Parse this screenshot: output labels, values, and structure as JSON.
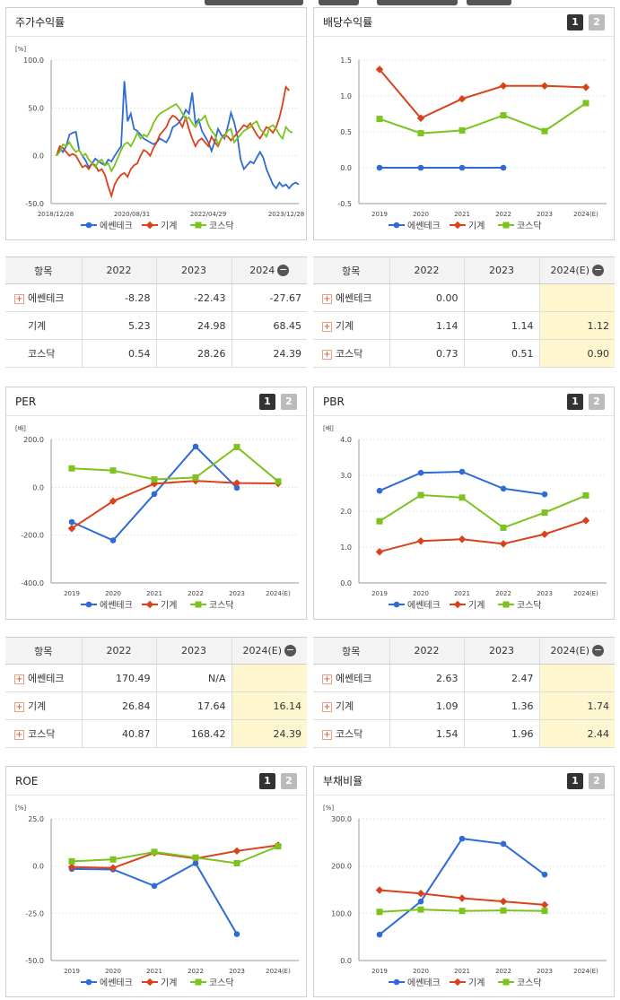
{
  "colors": {
    "company": "#2e6bd6",
    "industry": "#d9421a",
    "market": "#7cc31e",
    "highlight": "#fdf6cf"
  },
  "icons": {
    "expand": "plus-box-icon",
    "collapse": "minus-circle-icon"
  },
  "series_names": [
    "에쎈테크",
    "기계",
    "코스닥"
  ],
  "page_buttons": [
    "1",
    "2"
  ],
  "panels": {
    "stock_return": {
      "title": "주가수익률"
    },
    "dividend": {
      "title": "배당수익률"
    },
    "per": {
      "title": "PER"
    },
    "pbr": {
      "title": "PBR"
    },
    "roe": {
      "title": "ROE"
    },
    "debt": {
      "title": "부채비율"
    }
  },
  "tables": {
    "stock_return": {
      "headers": [
        "항목",
        "2022",
        "2023",
        "2024"
      ],
      "rows": [
        {
          "name": "에쎈테크",
          "expand": true,
          "v": [
            "-8.28",
            "-22.43",
            "-27.67"
          ]
        },
        {
          "name": "기계",
          "expand": false,
          "v": [
            "5.23",
            "24.98",
            "68.45"
          ]
        },
        {
          "name": "코스닥",
          "expand": false,
          "v": [
            "0.54",
            "28.26",
            "24.39"
          ]
        }
      ]
    },
    "dividend": {
      "headers": [
        "항목",
        "2022",
        "2023",
        "2024(E)"
      ],
      "rows": [
        {
          "name": "에쎈테크",
          "expand": true,
          "v": [
            "0.00",
            "",
            ""
          ]
        },
        {
          "name": "기계",
          "expand": true,
          "v": [
            "1.14",
            "1.14",
            "1.12"
          ]
        },
        {
          "name": "코스닥",
          "expand": true,
          "v": [
            "0.73",
            "0.51",
            "0.90"
          ]
        }
      ]
    },
    "per": {
      "headers": [
        "항목",
        "2022",
        "2023",
        "2024(E)"
      ],
      "rows": [
        {
          "name": "에쎈테크",
          "expand": true,
          "v": [
            "170.49",
            "N/A",
            ""
          ]
        },
        {
          "name": "기계",
          "expand": true,
          "v": [
            "26.84",
            "17.64",
            "16.14"
          ]
        },
        {
          "name": "코스닥",
          "expand": true,
          "v": [
            "40.87",
            "168.42",
            "24.39"
          ]
        }
      ]
    },
    "pbr": {
      "headers": [
        "항목",
        "2022",
        "2023",
        "2024(E)"
      ],
      "rows": [
        {
          "name": "에쎈테크",
          "expand": true,
          "v": [
            "2.63",
            "2.47",
            ""
          ]
        },
        {
          "name": "기계",
          "expand": true,
          "v": [
            "1.09",
            "1.36",
            "1.74"
          ]
        },
        {
          "name": "코스닥",
          "expand": true,
          "v": [
            "1.54",
            "1.96",
            "2.44"
          ]
        }
      ]
    }
  },
  "chart_data": [
    {
      "id": "stock_return",
      "type": "line",
      "ylabel": "[%]",
      "ylim": [
        -50,
        100
      ],
      "yticks": [
        "100.0",
        "50.0",
        "0.0",
        "-50.0"
      ],
      "xticks": [
        "2018/12/28",
        "2020/08/31",
        "2022/04/29",
        "2023/12/28"
      ],
      "series": [
        {
          "name": "에쎈테크",
          "values": [
            0,
            8,
            4,
            10,
            22,
            24,
            25,
            6,
            0,
            -5,
            -12,
            -8,
            -3,
            -6,
            -8,
            -10,
            -4,
            -6,
            0,
            5,
            10,
            78,
            36,
            44,
            28,
            26,
            22,
            18,
            16,
            14,
            12,
            14,
            18,
            16,
            14,
            20,
            30,
            32,
            35,
            40,
            48,
            44,
            66,
            34,
            38,
            26,
            20,
            14,
            5,
            15,
            28,
            22,
            18,
            30,
            45,
            35,
            20,
            -4,
            -14,
            -10,
            -6,
            -8,
            -2,
            4,
            -2,
            -14,
            -22,
            -30,
            -34,
            -28,
            -32,
            -30,
            -34,
            -30,
            -28,
            -30
          ]
        },
        {
          "name": "기계",
          "values": [
            0,
            10,
            8,
            4,
            0,
            2,
            0,
            -6,
            -12,
            -10,
            -14,
            -8,
            -10,
            -16,
            -14,
            -20,
            -32,
            -42,
            -30,
            -24,
            -20,
            -18,
            -22,
            -14,
            -10,
            -8,
            0,
            6,
            4,
            0,
            8,
            14,
            22,
            26,
            30,
            38,
            42,
            40,
            36,
            30,
            40,
            28,
            18,
            10,
            16,
            18,
            14,
            10,
            20,
            14,
            10,
            18,
            22,
            20,
            16,
            20,
            24,
            28,
            32,
            30,
            34,
            28,
            22,
            18,
            24,
            30,
            28,
            24,
            30,
            40,
            54,
            72,
            68
          ]
        },
        {
          "name": "코스닥",
          "values": [
            0,
            4,
            12,
            10,
            14,
            8,
            4,
            6,
            0,
            2,
            -4,
            -8,
            -12,
            -6,
            -4,
            -10,
            -8,
            -16,
            -10,
            -2,
            6,
            12,
            14,
            10,
            16,
            24,
            18,
            22,
            20,
            26,
            34,
            40,
            44,
            46,
            48,
            50,
            52,
            54,
            50,
            44,
            38,
            40,
            34,
            30,
            36,
            38,
            42,
            32,
            26,
            22,
            12,
            18,
            20,
            26,
            28,
            14,
            18,
            22,
            26,
            28,
            30,
            34,
            36,
            28,
            24,
            20,
            30,
            32,
            28,
            22,
            18,
            30,
            26,
            24
          ]
        }
      ]
    },
    {
      "id": "dividend",
      "type": "line",
      "ylim": [
        -0.5,
        1.5
      ],
      "yticks": [
        "1.5",
        "1.0",
        "0.5",
        "0.0",
        "-0.5"
      ],
      "categories": [
        "2019",
        "2020",
        "2021",
        "2022",
        "2023",
        "2024(E)"
      ],
      "series": [
        {
          "name": "에쎈테크",
          "values": [
            0,
            0,
            0,
            0,
            null,
            null
          ]
        },
        {
          "name": "기계",
          "values": [
            1.37,
            0.69,
            0.96,
            1.14,
            1.14,
            1.12
          ]
        },
        {
          "name": "코스닥",
          "values": [
            0.68,
            0.48,
            0.52,
            0.73,
            0.51,
            0.9
          ]
        }
      ]
    },
    {
      "id": "per",
      "type": "line",
      "ylabel": "[배]",
      "ylim": [
        -400,
        200
      ],
      "yticks": [
        "200.0",
        "0.0",
        "-200.0",
        "-400.0"
      ],
      "categories": [
        "2019",
        "2020",
        "2021",
        "2022",
        "2023",
        "2024(E)"
      ],
      "series": [
        {
          "name": "에쎈테크",
          "values": [
            -145,
            -222,
            -28,
            170.49,
            -2,
            null
          ]
        },
        {
          "name": "기계",
          "values": [
            -172,
            -58,
            15,
            26.84,
            17.64,
            16.14
          ]
        },
        {
          "name": "코스닥",
          "values": [
            79,
            70,
            33,
            40.87,
            168.42,
            24.39
          ]
        }
      ]
    },
    {
      "id": "pbr",
      "type": "line",
      "ylabel": "[배]",
      "ylim": [
        0,
        4
      ],
      "yticks": [
        "4.0",
        "3.0",
        "2.0",
        "1.0",
        "0.0"
      ],
      "categories": [
        "2019",
        "2020",
        "2021",
        "2022",
        "2023",
        "2024(E)"
      ],
      "series": [
        {
          "name": "에쎈테크",
          "values": [
            2.57,
            3.07,
            3.1,
            2.63,
            2.47,
            null
          ]
        },
        {
          "name": "기계",
          "values": [
            0.87,
            1.17,
            1.22,
            1.09,
            1.36,
            1.74
          ]
        },
        {
          "name": "코스닥",
          "values": [
            1.72,
            2.45,
            2.38,
            1.54,
            1.96,
            2.44
          ]
        }
      ]
    },
    {
      "id": "roe",
      "type": "line",
      "ylabel": "[%]",
      "ylim": [
        -50,
        25
      ],
      "yticks": [
        "25.0",
        "0.0",
        "-25.0",
        "-50.0"
      ],
      "categories": [
        "2019",
        "2020",
        "2021",
        "2022",
        "2023",
        "2024(E)"
      ],
      "series": [
        {
          "name": "에쎈테크",
          "values": [
            -1.5,
            -1.8,
            -10.5,
            1.5,
            -36,
            null
          ]
        },
        {
          "name": "기계",
          "values": [
            -0.5,
            -1.0,
            7.0,
            4.0,
            8.0,
            11.0
          ]
        },
        {
          "name": "코스닥",
          "values": [
            2.5,
            3.5,
            7.5,
            4.5,
            1.5,
            10.5
          ]
        }
      ]
    },
    {
      "id": "debt",
      "type": "line",
      "ylabel": "[%]",
      "ylim": [
        0,
        300
      ],
      "yticks": [
        "300.0",
        "200.0",
        "100.0",
        "0.0"
      ],
      "categories": [
        "2019",
        "2020",
        "2021",
        "2022",
        "2023",
        "2024(E)"
      ],
      "series": [
        {
          "name": "에쎈테크",
          "values": [
            55,
            125,
            258,
            247,
            182,
            null
          ]
        },
        {
          "name": "기계",
          "values": [
            149,
            142,
            132,
            125,
            118,
            null
          ]
        },
        {
          "name": "코스닥",
          "values": [
            103,
            108,
            105,
            106,
            105,
            null
          ]
        }
      ]
    }
  ]
}
